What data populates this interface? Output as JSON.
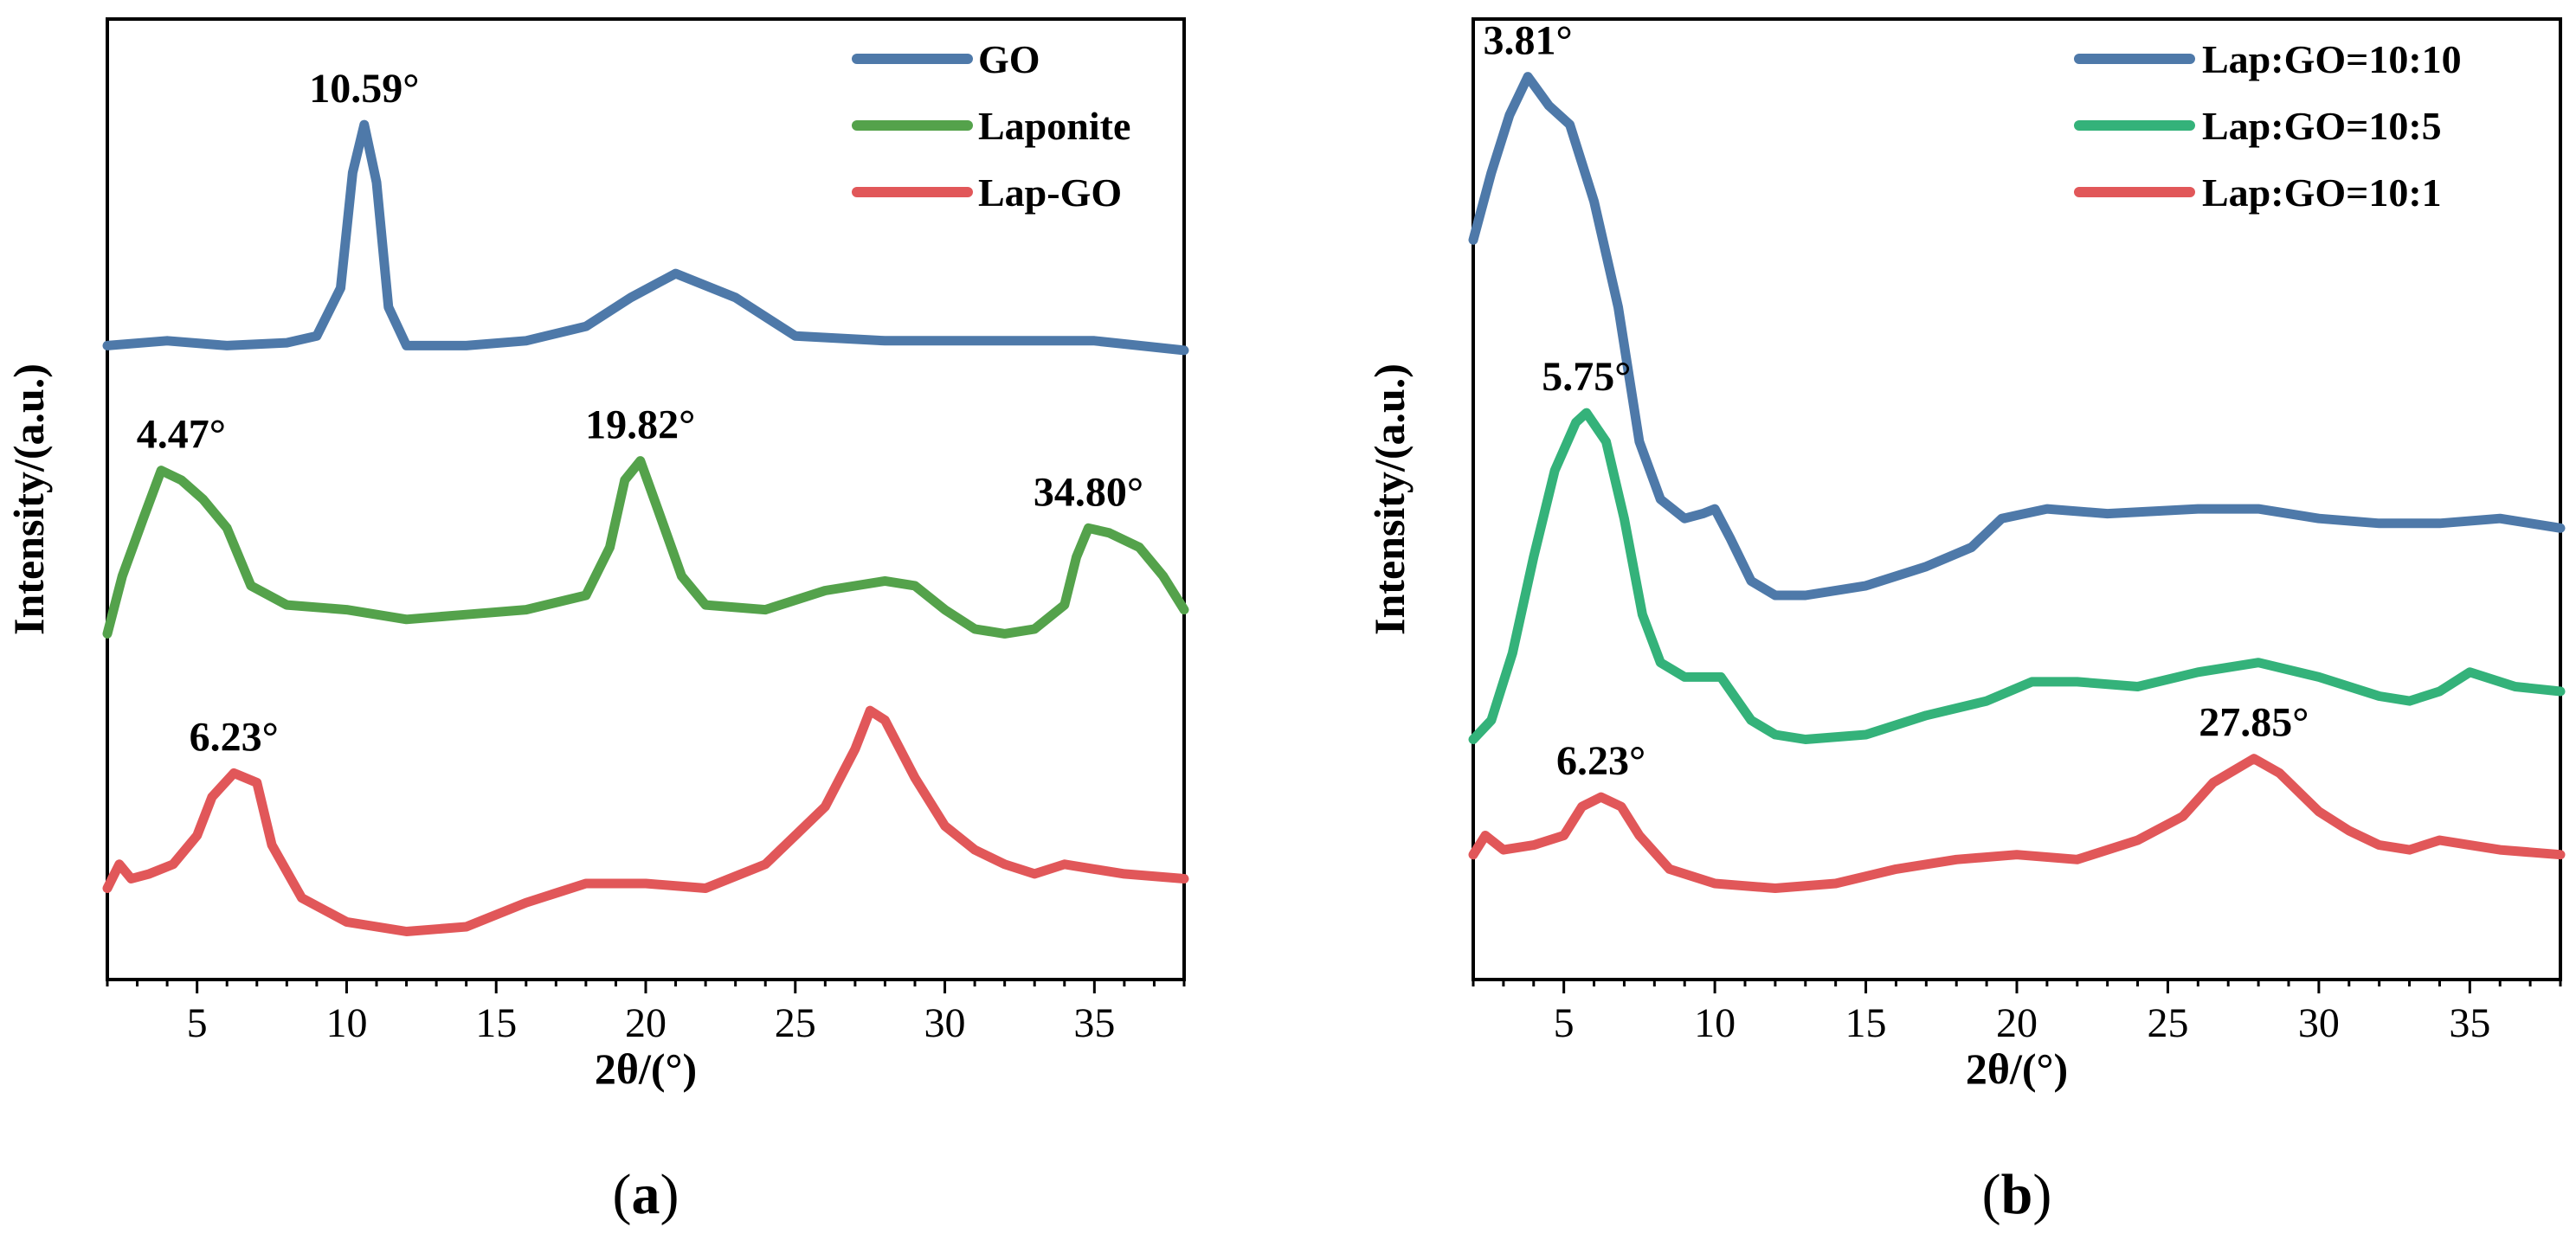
{
  "colors": {
    "blue": "#4e79a9",
    "green": "#54a24b",
    "red": "#e15759",
    "teal": "#34b27a"
  },
  "chart_data": [
    {
      "type": "line",
      "panel_label": "a",
      "xlabel": "2θ/(°)",
      "ylabel": "Intensity/(a.u.)",
      "xlim": [
        2,
        38
      ],
      "ylim": [
        0,
        100
      ],
      "y_ticks_shown": false,
      "x_ticks": [
        5,
        10,
        15,
        20,
        25,
        30,
        35
      ],
      "legend_position": "top-right",
      "series": [
        {
          "name": "GO",
          "color": "#4e79a9",
          "x": [
            2,
            4,
            6,
            8,
            9,
            9.8,
            10.2,
            10.59,
            11,
            11.4,
            12,
            14,
            16,
            18,
            19.5,
            21,
            23,
            25,
            28,
            32,
            35,
            38
          ],
          "y": [
            66,
            66.5,
            66,
            66.3,
            67,
            72,
            84,
            89,
            83,
            70,
            66,
            66,
            66.5,
            68,
            71,
            73.5,
            71,
            67,
            66.5,
            66.5,
            66.5,
            65.5
          ]
        },
        {
          "name": "Laponite",
          "color": "#54a24b",
          "x": [
            2,
            2.5,
            3.2,
            3.8,
            4.47,
            5.2,
            6,
            6.8,
            8,
            10,
            12,
            14,
            16,
            18,
            18.8,
            19.3,
            19.82,
            20.4,
            21.2,
            22,
            24,
            26,
            28,
            29,
            30,
            31,
            32,
            33,
            34,
            34.4,
            34.8,
            35.5,
            36.5,
            37.3,
            38
          ],
          "y": [
            36,
            42,
            48,
            53,
            52,
            50,
            47,
            41,
            39,
            38.5,
            37.5,
            38,
            38.5,
            40,
            45,
            52,
            54,
            49,
            42,
            39,
            38.5,
            40.5,
            41.5,
            41,
            38.5,
            36.5,
            36,
            36.5,
            39,
            44,
            47,
            46.5,
            45,
            42,
            38.5
          ]
        },
        {
          "name": "Lap-GO",
          "color": "#e15759",
          "x": [
            2,
            2.4,
            2.8,
            3.4,
            4.2,
            5,
            5.5,
            6.23,
            7,
            7.5,
            8.5,
            10,
            12,
            14,
            16,
            18,
            20,
            22,
            24,
            25,
            26,
            27,
            27.5,
            28,
            29,
            30,
            31,
            32,
            33,
            34,
            35,
            36,
            38
          ],
          "y": [
            9.5,
            12,
            10.5,
            11,
            12,
            15,
            19,
            21.5,
            20.5,
            14,
            8.5,
            6,
            5,
            5.5,
            8,
            10,
            10,
            9.5,
            12,
            15,
            18,
            24,
            28,
            27,
            21,
            16,
            13.5,
            12,
            11,
            12,
            11.5,
            11,
            10.5
          ]
        }
      ],
      "annotations": [
        {
          "text": "10.59°",
          "x": 10.59,
          "y": 89
        },
        {
          "text": "4.47°",
          "x": 4.47,
          "y": 53
        },
        {
          "text": "19.82°",
          "x": 19.82,
          "y": 54
        },
        {
          "text": "34.80°",
          "x": 34.8,
          "y": 47
        },
        {
          "text": "6.23°",
          "x": 6.23,
          "y": 21.5
        }
      ]
    },
    {
      "type": "line",
      "panel_label": "b",
      "xlabel": "2θ/(°)",
      "ylabel": "Intensity/(a.u.)",
      "xlim": [
        2,
        38
      ],
      "ylim": [
        0,
        100
      ],
      "y_ticks_shown": false,
      "x_ticks": [
        5,
        10,
        15,
        20,
        25,
        30,
        35
      ],
      "legend_position": "top-right",
      "series": [
        {
          "name": "Lap:GO=10:10",
          "color": "#4e79a9",
          "x": [
            2,
            2.6,
            3.2,
            3.81,
            4.5,
            5.2,
            6,
            6.8,
            7.5,
            8.2,
            9,
            9.6,
            10,
            10.5,
            11.2,
            12,
            13,
            15,
            17,
            18.5,
            19.5,
            21,
            23,
            26,
            28,
            30,
            32,
            34,
            36,
            38
          ],
          "y": [
            77,
            84,
            90,
            94,
            91,
            89,
            81,
            70,
            56,
            50,
            48,
            48.5,
            49,
            46,
            41.5,
            40,
            40,
            41,
            43,
            45,
            48,
            49,
            48.5,
            49,
            49,
            48,
            47.5,
            47.5,
            48,
            47
          ]
        },
        {
          "name": "Lap:GO=10:5",
          "color": "#34b27a",
          "x": [
            2,
            2.6,
            3.3,
            4,
            4.7,
            5.4,
            5.75,
            6.4,
            7,
            7.6,
            8.2,
            9,
            10.2,
            11.2,
            12,
            13,
            15,
            17,
            19,
            20.5,
            22,
            24,
            26,
            28,
            30,
            32,
            33,
            34,
            35,
            36.5,
            38
          ],
          "y": [
            25,
            27,
            34,
            44,
            53,
            58,
            59,
            56,
            48,
            38,
            33,
            31.5,
            31.5,
            27,
            25.5,
            25,
            25.5,
            27.5,
            29,
            31,
            31,
            30.5,
            32,
            33,
            31.5,
            29.5,
            29,
            30,
            32,
            30.5,
            30
          ]
        },
        {
          "name": "Lap:GO=10:1",
          "color": "#e15759",
          "x": [
            2,
            2.4,
            3,
            4,
            5,
            5.6,
            6.23,
            6.9,
            7.5,
            8.5,
            10,
            12,
            14,
            16,
            18,
            20,
            22,
            24,
            25.5,
            26.5,
            27.85,
            28.7,
            30,
            31,
            32,
            33,
            34,
            35,
            36,
            38
          ],
          "y": [
            13,
            15,
            13.5,
            14,
            15,
            18,
            19,
            18,
            15,
            11.5,
            10,
            9.5,
            10,
            11.5,
            12.5,
            13,
            12.5,
            14.5,
            17,
            20.5,
            23,
            21.5,
            17.5,
            15.5,
            14,
            13.5,
            14.5,
            14,
            13.5,
            13
          ]
        }
      ],
      "annotations": [
        {
          "text": "3.81°",
          "x": 3.81,
          "y": 94
        },
        {
          "text": "5.75°",
          "x": 5.75,
          "y": 59
        },
        {
          "text": "6.23°",
          "x": 6.23,
          "y": 19
        },
        {
          "text": "27.85°",
          "x": 27.85,
          "y": 23
        }
      ]
    }
  ]
}
